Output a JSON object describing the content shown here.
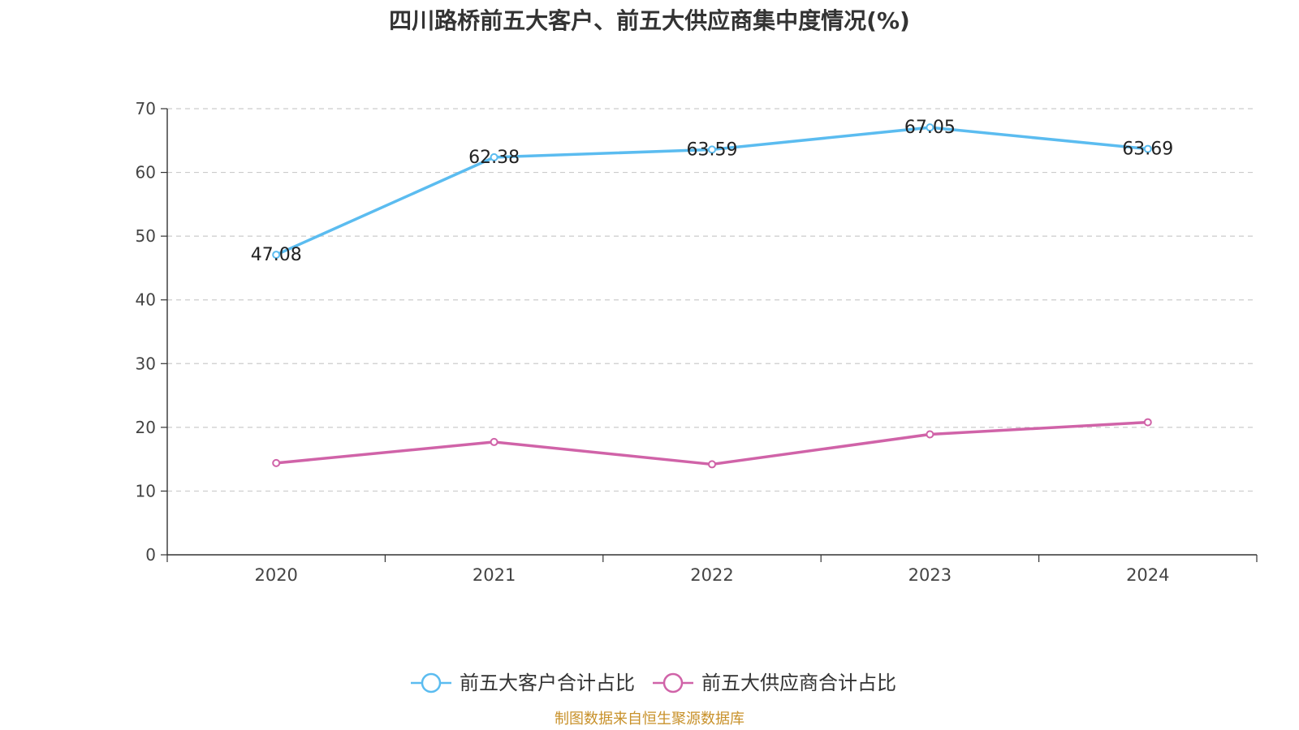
{
  "chart_data": {
    "type": "line",
    "title": "四川路桥前五大客户、前五大供应商集中度情况(%)",
    "categories": [
      "2020",
      "2021",
      "2022",
      "2023",
      "2024"
    ],
    "ylim": [
      0,
      70
    ],
    "yticks": [
      0,
      10,
      20,
      30,
      40,
      50,
      60,
      70
    ],
    "grid": true,
    "legend_position": "bottom",
    "series": [
      {
        "name": "前五大客户合计占比",
        "values": [
          47.08,
          62.38,
          63.59,
          67.05,
          63.69
        ],
        "labels": [
          "47.08",
          "62.38",
          "63.59",
          "67.05",
          "63.69"
        ],
        "color": "#5bbcf0"
      },
      {
        "name": "前五大供应商合计占比",
        "values": [
          14.4,
          17.7,
          14.2,
          18.9,
          20.8
        ],
        "labels": [],
        "color": "#d063a8"
      }
    ]
  },
  "source": "制图数据来自恒生聚源数据库"
}
